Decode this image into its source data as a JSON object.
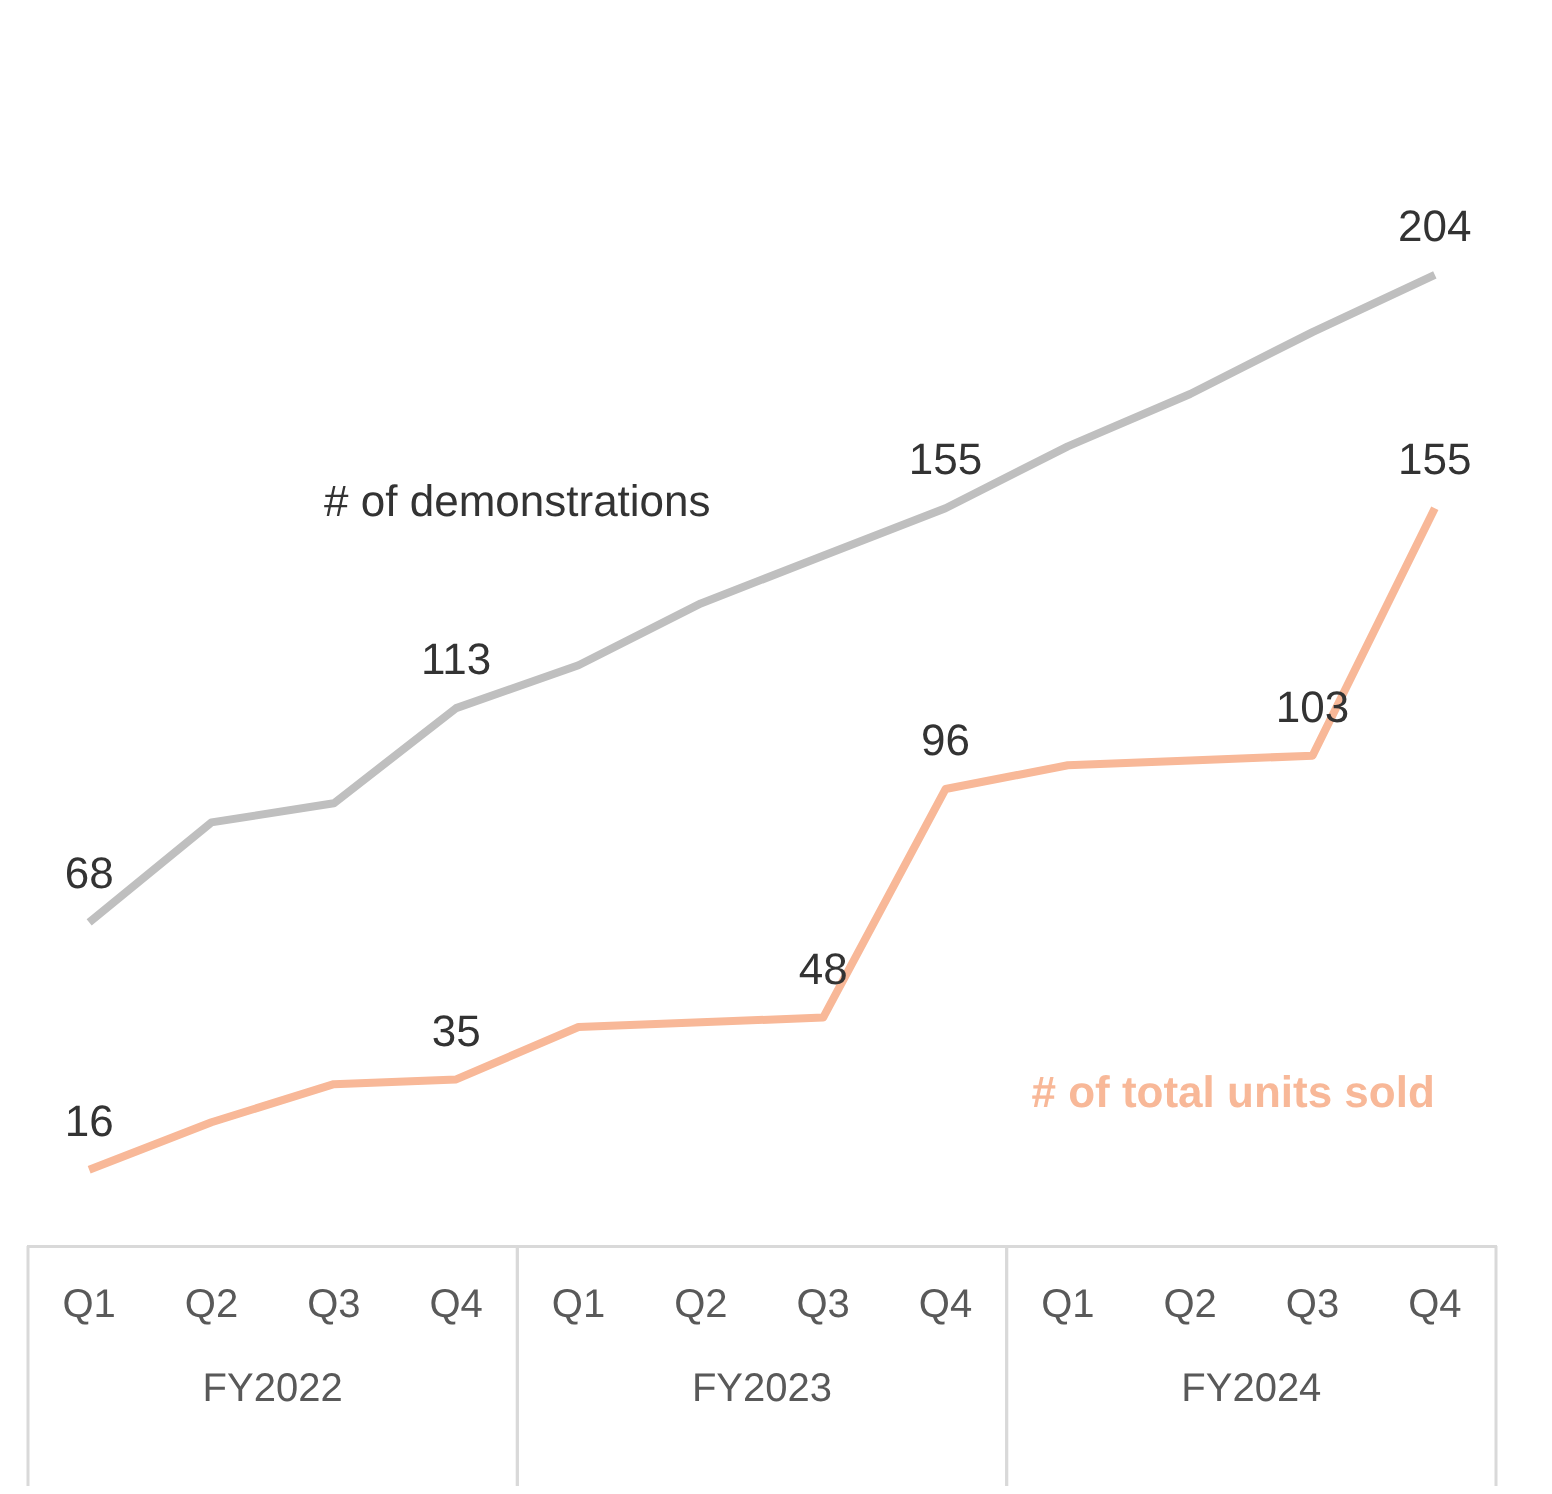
{
  "chart_data": {
    "type": "line",
    "categories": [
      "Q1",
      "Q2",
      "Q3",
      "Q4",
      "Q1",
      "Q2",
      "Q3",
      "Q4",
      "Q1",
      "Q2",
      "Q3",
      "Q4"
    ],
    "series": [
      {
        "name": "# of demonstrations",
        "color": "#bfbfbf",
        "values": [
          68,
          89,
          93,
          113,
          122,
          135,
          145,
          155,
          168,
          179,
          192,
          204
        ],
        "value_labels": [
          "68",
          null,
          null,
          "113",
          null,
          null,
          null,
          "155",
          null,
          null,
          null,
          "204"
        ]
      },
      {
        "name": "# of total units sold",
        "color": "#f8b898",
        "values": [
          16,
          26,
          34,
          35,
          46,
          47,
          48,
          96,
          101,
          102,
          103,
          155
        ],
        "value_labels": [
          "16",
          null,
          null,
          "35",
          null,
          null,
          "48",
          "96",
          null,
          null,
          "103",
          "155"
        ]
      }
    ],
    "annotations": [
      "FY2022",
      "FY2023",
      "FY2024"
    ],
    "legend": false,
    "grid": false,
    "marker": "none",
    "line_style": "solid"
  }
}
